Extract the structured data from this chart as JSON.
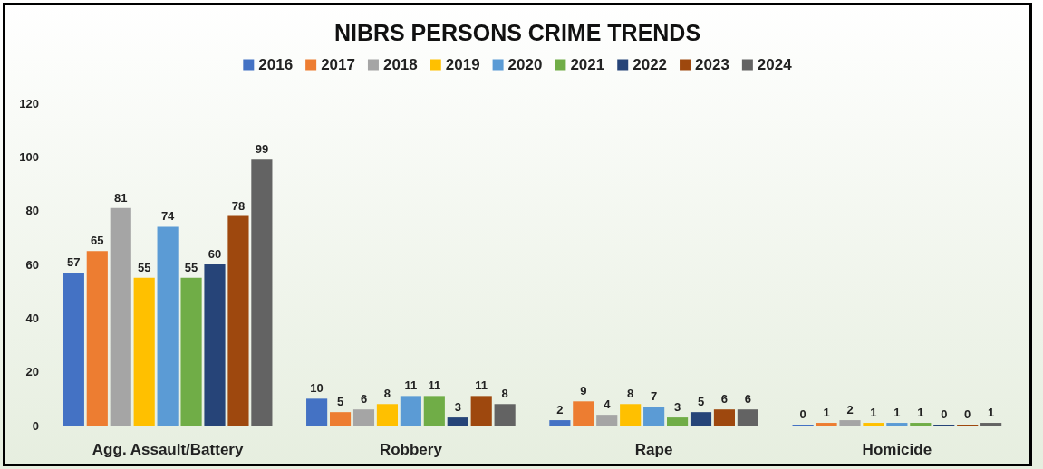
{
  "chart_data": {
    "type": "bar",
    "title": "NIBRS PERSONS CRIME TRENDS",
    "categories": [
      "Agg. Assault/Battery",
      "Robbery",
      "Rape",
      "Homicide"
    ],
    "series": [
      {
        "name": "2016",
        "color": "#4472c4",
        "values": [
          57,
          10,
          2,
          0
        ]
      },
      {
        "name": "2017",
        "color": "#ed7d31",
        "values": [
          65,
          5,
          9,
          1
        ]
      },
      {
        "name": "2018",
        "color": "#a5a5a5",
        "values": [
          81,
          6,
          4,
          2
        ]
      },
      {
        "name": "2019",
        "color": "#ffc000",
        "values": [
          55,
          8,
          8,
          1
        ]
      },
      {
        "name": "2020",
        "color": "#5b9bd5",
        "values": [
          74,
          11,
          7,
          1
        ]
      },
      {
        "name": "2021",
        "color": "#70ad47",
        "values": [
          55,
          11,
          3,
          1
        ]
      },
      {
        "name": "2022",
        "color": "#264478",
        "values": [
          60,
          3,
          5,
          0
        ]
      },
      {
        "name": "2023",
        "color": "#9e480e",
        "values": [
          78,
          11,
          6,
          0
        ]
      },
      {
        "name": "2024",
        "color": "#636363",
        "values": [
          99,
          8,
          6,
          1
        ]
      }
    ],
    "ylim": [
      0,
      120
    ],
    "yticks": [
      0,
      20,
      40,
      60,
      80,
      100,
      120
    ],
    "grid": false,
    "legend": "top",
    "data_labels": true
  }
}
